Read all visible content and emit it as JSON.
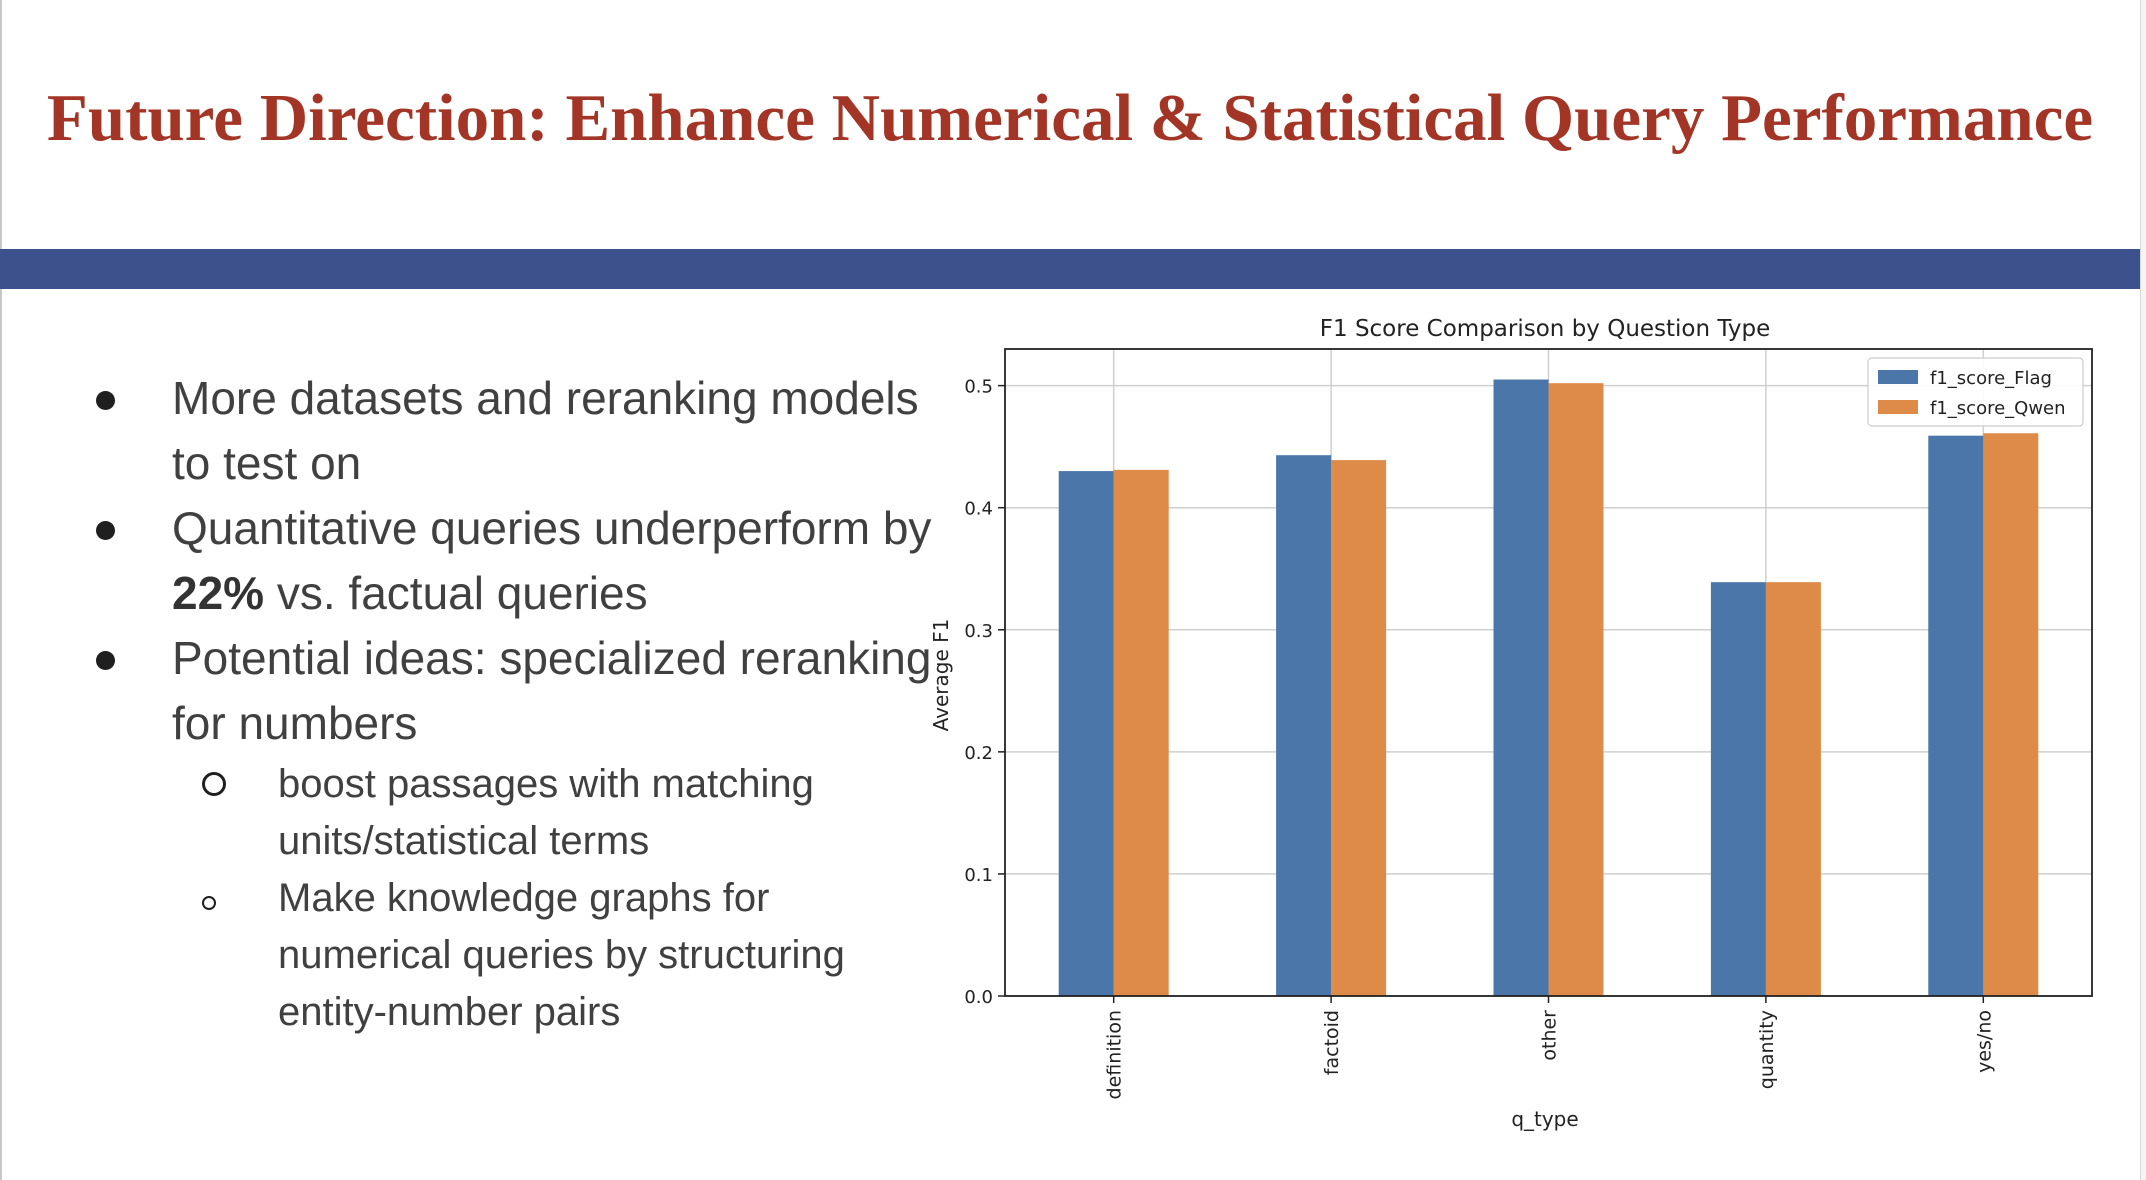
{
  "slide": {
    "title": "Future Direction: Enhance Numerical & Statistical Query Performance",
    "bullets": [
      {
        "text": "More datasets and reranking models to test on"
      },
      {
        "pre": "Quantitative queries underperform by ",
        "bold": "22%",
        "post": " vs. factual queries"
      },
      {
        "text": "Potential ideas: specialized reranking for numbers"
      }
    ],
    "sub_bullets": [
      "boost passages with matching units/statistical terms",
      "Make knowledge graphs for numerical queries by structuring entity-number pairs"
    ]
  },
  "colors": {
    "title": "#a33526",
    "band": "#3d528d",
    "flag": "#4a76aa",
    "qwen": "#de8a49"
  },
  "chart_data": {
    "type": "bar",
    "title": "F1 Score Comparison by Question Type",
    "xlabel": "q_type",
    "ylabel": "Average F1",
    "categories": [
      "definition",
      "factoid",
      "other",
      "quantity",
      "yes/no"
    ],
    "series": [
      {
        "name": "f1_score_Flag",
        "color": "#4a76aa",
        "values": [
          0.43,
          0.443,
          0.505,
          0.339,
          0.459
        ]
      },
      {
        "name": "f1_score_Qwen",
        "color": "#de8a49",
        "values": [
          0.431,
          0.439,
          0.502,
          0.339,
          0.461
        ]
      }
    ],
    "ylim": [
      0,
      0.53
    ],
    "yticks": [
      0.0,
      0.1,
      0.2,
      0.3,
      0.4,
      0.5
    ],
    "ytick_labels": [
      "0.0",
      "0.1",
      "0.2",
      "0.3",
      "0.4",
      "0.5"
    ],
    "grid": true,
    "legend": "top-right"
  }
}
